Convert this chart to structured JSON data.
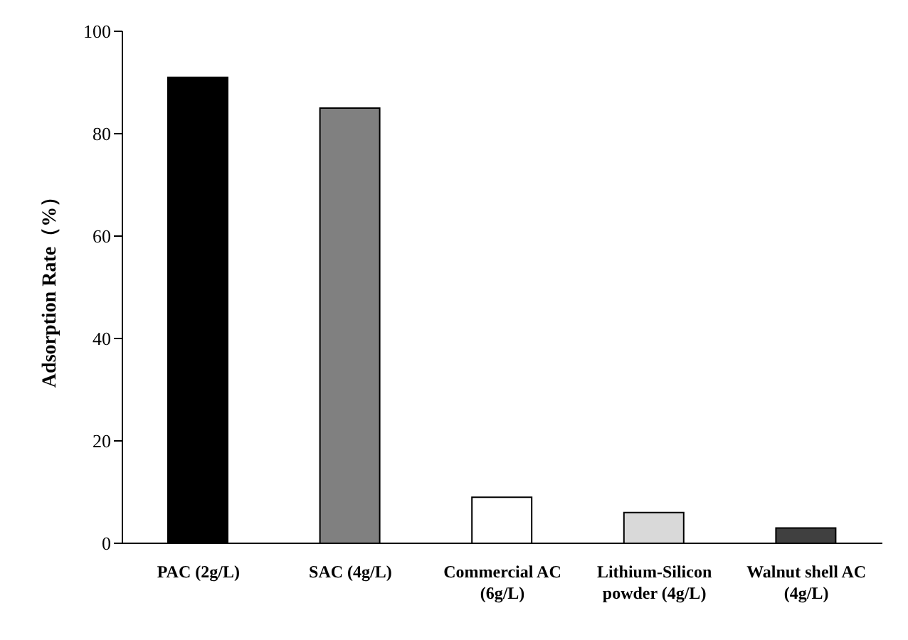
{
  "chart_data": {
    "type": "bar",
    "ylabel": "Adsorption Rate（%）",
    "categories": [
      "PAC (2g/L)",
      "SAC (4g/L)",
      "Commercial AC (6g/L)",
      "Lithium-Silicon powder (4g/L)",
      "Walnut shell AC (4g/L)"
    ],
    "values": [
      91,
      85,
      9,
      6,
      3
    ],
    "colors": [
      "#000000",
      "#808080",
      "#ffffff",
      "#d9d9d9",
      "#404040"
    ],
    "ylim": [
      0,
      100
    ],
    "yticks": [
      0,
      20,
      40,
      60,
      80,
      100
    ],
    "grid": false,
    "legend": false
  }
}
